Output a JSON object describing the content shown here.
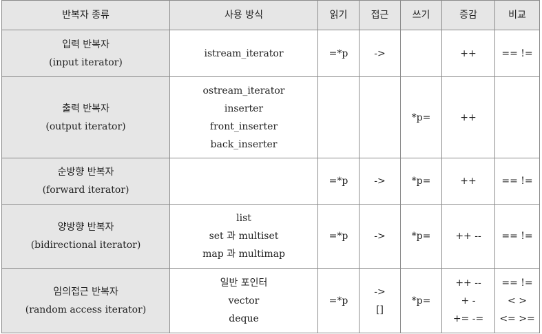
{
  "headers": [
    "반복자 종류",
    "사용 방식",
    "읽기",
    "접근",
    "쓰기",
    "증감",
    "비교"
  ],
  "rows": [
    {
      "type": [
        "입력 반복자",
        "(input iterator)"
      ],
      "usage": [
        "istream_iterator"
      ],
      "read": [
        "=*p"
      ],
      "access": [
        "->"
      ],
      "write": [],
      "incdec": [
        "++"
      ],
      "compare": [
        "== !="
      ]
    },
    {
      "type": [
        "출력 반복자",
        "(output iterator)"
      ],
      "usage": [
        "ostream_iterator",
        "inserter",
        "front_inserter",
        "back_inserter"
      ],
      "read": [],
      "access": [],
      "write": [
        "*p="
      ],
      "incdec": [
        "++"
      ],
      "compare": []
    },
    {
      "type": [
        "순방향 반복자",
        "(forward iterator)"
      ],
      "usage": [],
      "read": [
        "=*p"
      ],
      "access": [
        "->"
      ],
      "write": [
        "*p="
      ],
      "incdec": [
        "++"
      ],
      "compare": [
        "== !="
      ]
    },
    {
      "type": [
        "양방향 반복자",
        "(bidirectional iterator)"
      ],
      "usage": [
        "list",
        "set 과 multiset",
        "map 과 multimap"
      ],
      "read": [
        "=*p"
      ],
      "access": [
        "->"
      ],
      "write": [
        "*p="
      ],
      "incdec": [
        "++ --"
      ],
      "compare": [
        "== !="
      ]
    },
    {
      "type": [
        "임의접근 반복자",
        "(random access iterator)"
      ],
      "usage": [
        "일반 포인터",
        "vector",
        "deque"
      ],
      "read": [
        "=*p"
      ],
      "access": [
        "->",
        "[]"
      ],
      "write": [
        "*p="
      ],
      "incdec": [
        "++ --",
        "+ -",
        "+= -="
      ],
      "compare": [
        "== !=",
        "< >",
        "<= >="
      ]
    }
  ]
}
